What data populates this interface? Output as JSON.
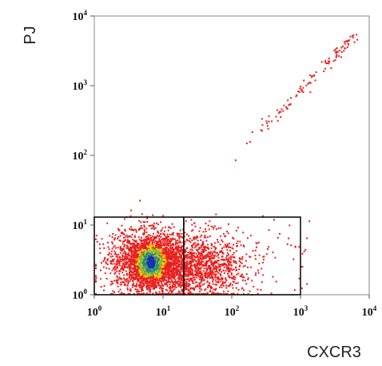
{
  "chart_data": {
    "type": "scatter",
    "subtype": "flow-cytometry-density-dot-plot",
    "title": "",
    "xlabel": "CXCR3",
    "ylabel": "PJ",
    "x_scale": "log",
    "y_scale": "log",
    "xlim": [
      1,
      10000
    ],
    "ylim": [
      1,
      10000
    ],
    "x_ticks": [
      {
        "base": "10",
        "exp": "0",
        "value": 1
      },
      {
        "base": "10",
        "exp": "1",
        "value": 10
      },
      {
        "base": "10",
        "exp": "2",
        "value": 100
      },
      {
        "base": "10",
        "exp": "3",
        "value": 1000
      },
      {
        "base": "10",
        "exp": "4",
        "value": 10000
      }
    ],
    "y_ticks": [
      {
        "base": "10",
        "exp": "0",
        "value": 1
      },
      {
        "base": "10",
        "exp": "1",
        "value": 10
      },
      {
        "base": "10",
        "exp": "2",
        "value": 100
      },
      {
        "base": "10",
        "exp": "3",
        "value": 1000
      },
      {
        "base": "10",
        "exp": "4",
        "value": 10000
      }
    ],
    "grid": false,
    "density_colors": {
      "low": "#e8201e",
      "mid_low": "#ffd200",
      "mid": "#5cc84a",
      "high": "#1f8a8a",
      "peak": "#1a2fb0"
    },
    "populations": [
      {
        "center_x": 6.5,
        "center_y": 3.0,
        "spread_x_decades": 0.28,
        "spread_y_decades": 0.22,
        "relative_size": 1.0
      },
      {
        "center_x": 35,
        "center_y": 2.6,
        "spread_x_decades": 0.35,
        "spread_y_decades": 0.24,
        "relative_size": 0.45
      }
    ],
    "diagonal_events": {
      "x_from": 100,
      "x_to": 6000,
      "color": "#e8201e"
    },
    "gates": [
      {
        "x": [
          1,
          20
        ],
        "y": [
          1,
          13
        ],
        "color": "#111111"
      },
      {
        "x": [
          20,
          1000
        ],
        "y": [
          1,
          13
        ],
        "color": "#111111"
      }
    ]
  }
}
